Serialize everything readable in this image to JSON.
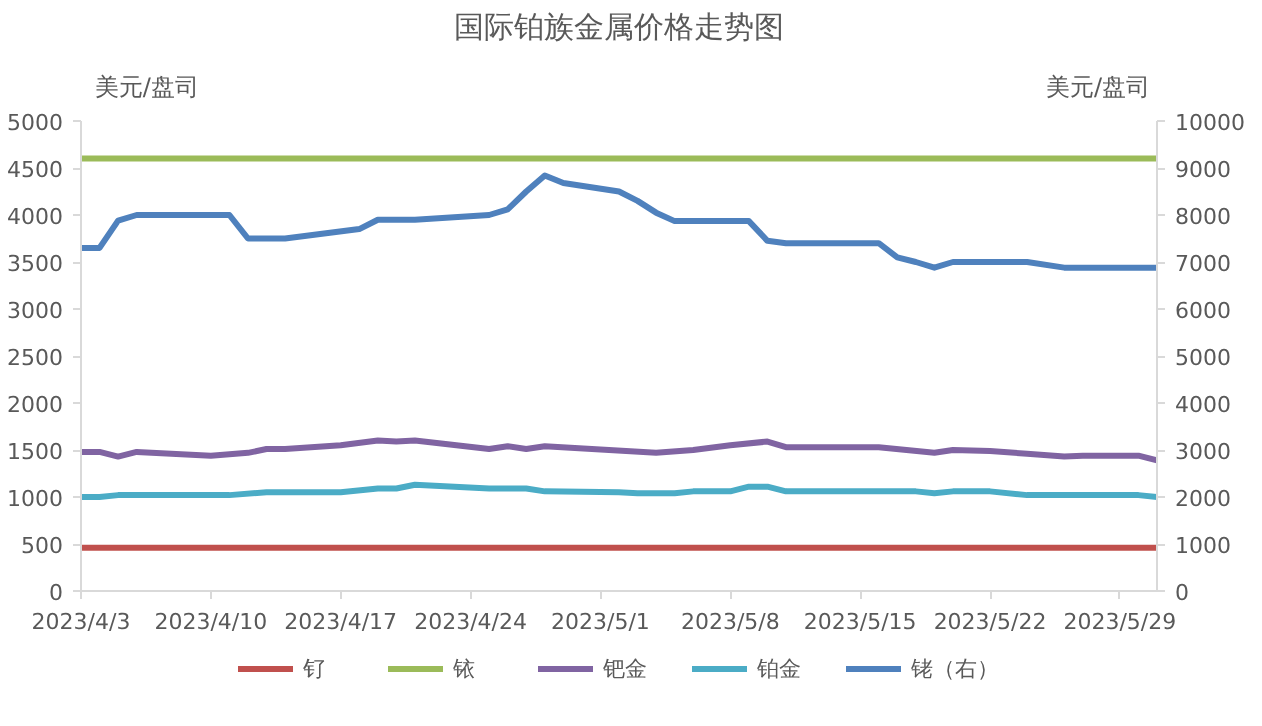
{
  "chart_data": {
    "type": "line",
    "title": "国际铂族金属价格走势图",
    "ylabel": "美元/盘司",
    "y2label": "美元/盘司",
    "xlim": [
      "2023-04-03",
      "2023-05-31"
    ],
    "xticks": [
      {
        "value": "2023-04-03",
        "label": "2023/4/3"
      },
      {
        "value": "2023-04-10",
        "label": "2023/4/10"
      },
      {
        "value": "2023-04-17",
        "label": "2023/4/17"
      },
      {
        "value": "2023-04-24",
        "label": "2023/4/24"
      },
      {
        "value": "2023-05-01",
        "label": "2023/5/1"
      },
      {
        "value": "2023-05-08",
        "label": "2023/5/8"
      },
      {
        "value": "2023-05-15",
        "label": "2023/5/15"
      },
      {
        "value": "2023-05-22",
        "label": "2023/5/22"
      },
      {
        "value": "2023-05-29",
        "label": "2023/5/29"
      }
    ],
    "ylim": [
      0,
      5000
    ],
    "yticks": [
      0,
      500,
      1000,
      1500,
      2000,
      2500,
      3000,
      3500,
      4000,
      4500,
      5000
    ],
    "y2lim": [
      0,
      10000
    ],
    "y2ticks": [
      0,
      1000,
      2000,
      3000,
      4000,
      5000,
      6000,
      7000,
      8000,
      9000,
      10000
    ],
    "legend": "bottom",
    "line_style": "solid",
    "series": [
      {
        "name": "钌",
        "color": "#c0504d",
        "x": [
          "2023-04-03",
          "2023-05-31"
        ],
        "values": [
          460,
          460
        ]
      },
      {
        "name": "铱",
        "color": "#9bbb59",
        "x": [
          "2023-04-03",
          "2023-05-31"
        ],
        "values": [
          4600,
          4600
        ]
      },
      {
        "name": "钯金",
        "color": "#8064a2",
        "x": [
          "2023-04-03",
          "2023-04-04",
          "2023-04-05",
          "2023-04-06",
          "2023-04-10",
          "2023-04-12",
          "2023-04-13",
          "2023-04-14",
          "2023-04-17",
          "2023-04-19",
          "2023-04-20",
          "2023-04-21",
          "2023-04-25",
          "2023-04-26",
          "2023-04-27",
          "2023-04-28",
          "2023-05-04",
          "2023-05-06",
          "2023-05-08",
          "2023-05-10",
          "2023-05-11",
          "2023-05-16",
          "2023-05-19",
          "2023-05-20",
          "2023-05-22",
          "2023-05-24",
          "2023-05-26",
          "2023-05-27",
          "2023-05-30",
          "2023-05-31"
        ],
        "values": [
          1480,
          1480,
          1430,
          1480,
          1440,
          1470,
          1510,
          1510,
          1550,
          1600,
          1590,
          1600,
          1510,
          1540,
          1510,
          1540,
          1470,
          1500,
          1550,
          1590,
          1530,
          1530,
          1470,
          1500,
          1490,
          1460,
          1430,
          1440,
          1440,
          1390
        ]
      },
      {
        "name": "铂金",
        "color": "#4bacc6",
        "x": [
          "2023-04-03",
          "2023-04-04",
          "2023-04-05",
          "2023-04-11",
          "2023-04-13",
          "2023-04-17",
          "2023-04-19",
          "2023-04-20",
          "2023-04-21",
          "2023-04-25",
          "2023-04-27",
          "2023-04-28",
          "2023-05-02",
          "2023-05-03",
          "2023-05-05",
          "2023-05-06",
          "2023-05-08",
          "2023-05-09",
          "2023-05-10",
          "2023-05-11",
          "2023-05-18",
          "2023-05-19",
          "2023-05-20",
          "2023-05-22",
          "2023-05-24",
          "2023-05-30",
          "2023-05-31"
        ],
        "values": [
          1000,
          1000,
          1020,
          1020,
          1050,
          1050,
          1090,
          1090,
          1130,
          1090,
          1090,
          1060,
          1050,
          1040,
          1040,
          1060,
          1060,
          1110,
          1110,
          1060,
          1060,
          1040,
          1060,
          1060,
          1020,
          1020,
          1000
        ]
      },
      {
        "name": "铑（右）",
        "color": "#4f81bd",
        "axis": "y2",
        "x": [
          "2023-04-03",
          "2023-04-04",
          "2023-04-05",
          "2023-04-06",
          "2023-04-11",
          "2023-04-12",
          "2023-04-14",
          "2023-04-18",
          "2023-04-19",
          "2023-04-21",
          "2023-04-25",
          "2023-04-26",
          "2023-04-27",
          "2023-04-28",
          "2023-04-29",
          "2023-05-02",
          "2023-05-03",
          "2023-05-04",
          "2023-05-05",
          "2023-05-09",
          "2023-05-10",
          "2023-05-11",
          "2023-05-16",
          "2023-05-17",
          "2023-05-18",
          "2023-05-19",
          "2023-05-20",
          "2023-05-24",
          "2023-05-26",
          "2023-05-31"
        ],
        "values": [
          7300,
          7300,
          7880,
          8000,
          8000,
          7500,
          7500,
          7700,
          7900,
          7900,
          8000,
          8120,
          8500,
          8840,
          8680,
          8500,
          8300,
          8050,
          7870,
          7870,
          7450,
          7400,
          7400,
          7100,
          7000,
          6880,
          7000,
          7000,
          6880,
          6880
        ]
      }
    ]
  }
}
